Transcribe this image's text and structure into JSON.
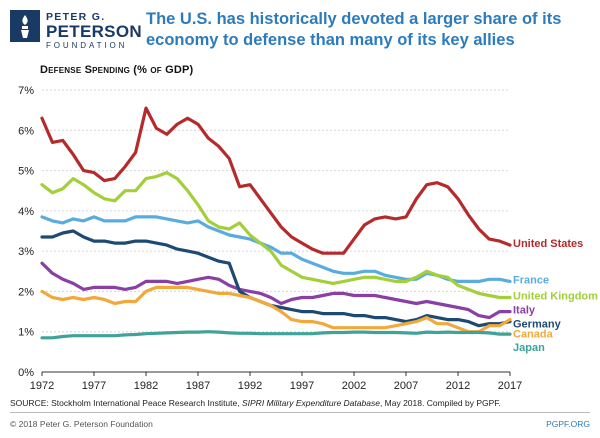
{
  "header": {
    "logo_line1": "PETER G.",
    "logo_line2": "PETERSON",
    "logo_line3": "FOUNDATION",
    "headline": "The U.S. has historically devoted a larger share of its economy to defense than many of its key allies"
  },
  "footer": {
    "source_prefix": "SOURCE: Stockholm International Peace Research Institute, ",
    "source_italic": "SIPRI Military Expenditure Database",
    "source_suffix": ", May 2018. Compiled by PGPF.",
    "copyright": "© 2018 Peter G. Peterson Foundation",
    "site": "PGPF.ORG"
  },
  "colors": {
    "brand": "#1a3a66",
    "accent": "#2c7bbd"
  },
  "chart_data": {
    "type": "line",
    "title": "Defense Spending (% of GDP)",
    "x": [
      1972,
      1973,
      1974,
      1975,
      1976,
      1977,
      1978,
      1979,
      1980,
      1981,
      1982,
      1983,
      1984,
      1985,
      1986,
      1987,
      1988,
      1989,
      1990,
      1991,
      1992,
      1993,
      1994,
      1995,
      1996,
      1997,
      1998,
      1999,
      2000,
      2001,
      2002,
      2003,
      2004,
      2005,
      2006,
      2007,
      2008,
      2009,
      2010,
      2011,
      2012,
      2013,
      2014,
      2015,
      2016,
      2017
    ],
    "xlim": [
      1972,
      2017
    ],
    "ylim": [
      0,
      7
    ],
    "xticks": [
      1972,
      1977,
      1982,
      1987,
      1992,
      1997,
      2002,
      2007,
      2012,
      2017
    ],
    "yticks": [
      {
        "value": 0,
        "label": "0%"
      },
      {
        "value": 1,
        "label": "1%"
      },
      {
        "value": 2,
        "label": "2%"
      },
      {
        "value": 3,
        "label": "3%"
      },
      {
        "value": 4,
        "label": "4%"
      },
      {
        "value": 5,
        "label": "5%"
      },
      {
        "value": 6,
        "label": "6%"
      },
      {
        "value": 7,
        "label": "7%"
      }
    ],
    "grid": true,
    "legend": "right-end labels",
    "series": [
      {
        "name": "United States",
        "color": "#b52a2a",
        "label_y": 3.2,
        "values": [
          6.3,
          5.7,
          5.75,
          5.4,
          5.0,
          4.95,
          4.75,
          4.8,
          5.1,
          5.45,
          6.55,
          6.05,
          5.9,
          6.15,
          6.3,
          6.15,
          5.8,
          5.6,
          5.3,
          4.6,
          4.65,
          4.3,
          3.95,
          3.6,
          3.35,
          3.2,
          3.05,
          2.95,
          2.95,
          2.95,
          3.3,
          3.65,
          3.8,
          3.85,
          3.8,
          3.85,
          4.3,
          4.65,
          4.7,
          4.6,
          4.3,
          3.9,
          3.55,
          3.3,
          3.25,
          3.15
        ]
      },
      {
        "name": "France",
        "color": "#5aacdf",
        "label_y": 2.3,
        "values": [
          3.85,
          3.75,
          3.7,
          3.8,
          3.75,
          3.85,
          3.75,
          3.75,
          3.75,
          3.85,
          3.85,
          3.85,
          3.8,
          3.75,
          3.7,
          3.75,
          3.6,
          3.5,
          3.4,
          3.35,
          3.3,
          3.2,
          3.1,
          2.95,
          2.95,
          2.8,
          2.7,
          2.6,
          2.5,
          2.45,
          2.45,
          2.5,
          2.5,
          2.4,
          2.35,
          2.3,
          2.3,
          2.45,
          2.4,
          2.3,
          2.25,
          2.25,
          2.25,
          2.3,
          2.3,
          2.25
        ]
      },
      {
        "name": "United Kingdom",
        "color": "#a3cf3a",
        "label_y": 1.9,
        "values": [
          4.65,
          4.45,
          4.55,
          4.8,
          4.65,
          4.45,
          4.3,
          4.25,
          4.5,
          4.5,
          4.8,
          4.85,
          4.95,
          4.8,
          4.5,
          4.15,
          3.75,
          3.6,
          3.55,
          3.7,
          3.4,
          3.2,
          3.0,
          2.65,
          2.5,
          2.35,
          2.3,
          2.25,
          2.2,
          2.25,
          2.3,
          2.35,
          2.35,
          2.3,
          2.25,
          2.25,
          2.35,
          2.5,
          2.4,
          2.35,
          2.15,
          2.05,
          1.95,
          1.9,
          1.85,
          1.85
        ]
      },
      {
        "name": "Italy",
        "color": "#8a3fa5",
        "label_y": 1.55,
        "values": [
          2.7,
          2.45,
          2.3,
          2.2,
          2.05,
          2.1,
          2.1,
          2.1,
          2.05,
          2.1,
          2.25,
          2.25,
          2.25,
          2.2,
          2.25,
          2.3,
          2.35,
          2.3,
          2.15,
          2.05,
          2.0,
          1.95,
          1.85,
          1.7,
          1.8,
          1.85,
          1.85,
          1.9,
          1.95,
          1.95,
          1.9,
          1.9,
          1.9,
          1.85,
          1.8,
          1.75,
          1.7,
          1.75,
          1.7,
          1.65,
          1.6,
          1.55,
          1.4,
          1.35,
          1.5,
          1.5
        ]
      },
      {
        "name": "Germany",
        "color": "#1d4a73",
        "label_y": 1.2,
        "values": [
          3.35,
          3.35,
          3.45,
          3.5,
          3.35,
          3.25,
          3.25,
          3.2,
          3.2,
          3.25,
          3.25,
          3.2,
          3.15,
          3.05,
          3.0,
          2.95,
          2.85,
          2.75,
          2.7,
          2.0,
          1.85,
          1.75,
          1.65,
          1.6,
          1.55,
          1.5,
          1.5,
          1.45,
          1.45,
          1.45,
          1.4,
          1.4,
          1.35,
          1.35,
          1.3,
          1.25,
          1.3,
          1.4,
          1.35,
          1.3,
          1.3,
          1.25,
          1.15,
          1.2,
          1.2,
          1.25
        ]
      },
      {
        "name": "Canada",
        "color": "#f2a93b",
        "label_y": 0.95,
        "values": [
          2.0,
          1.85,
          1.8,
          1.85,
          1.8,
          1.85,
          1.8,
          1.7,
          1.75,
          1.75,
          2.0,
          2.1,
          2.1,
          2.1,
          2.1,
          2.05,
          2.0,
          1.95,
          1.95,
          1.9,
          1.85,
          1.75,
          1.65,
          1.5,
          1.3,
          1.25,
          1.25,
          1.2,
          1.1,
          1.1,
          1.1,
          1.1,
          1.1,
          1.1,
          1.15,
          1.2,
          1.25,
          1.35,
          1.2,
          1.2,
          1.1,
          1.0,
          1.0,
          1.15,
          1.15,
          1.3
        ]
      },
      {
        "name": "Japan",
        "color": "#3fa39a",
        "label_y": 0.62,
        "values": [
          0.85,
          0.85,
          0.88,
          0.9,
          0.9,
          0.9,
          0.9,
          0.9,
          0.92,
          0.93,
          0.95,
          0.96,
          0.97,
          0.98,
          0.99,
          0.99,
          1.0,
          0.99,
          0.97,
          0.96,
          0.96,
          0.95,
          0.95,
          0.95,
          0.95,
          0.95,
          0.95,
          0.97,
          0.98,
          0.98,
          0.99,
          0.99,
          0.98,
          0.98,
          0.98,
          0.97,
          0.96,
          0.99,
          0.98,
          0.99,
          0.98,
          0.98,
          0.98,
          0.97,
          0.94,
          0.94
        ]
      }
    ]
  }
}
